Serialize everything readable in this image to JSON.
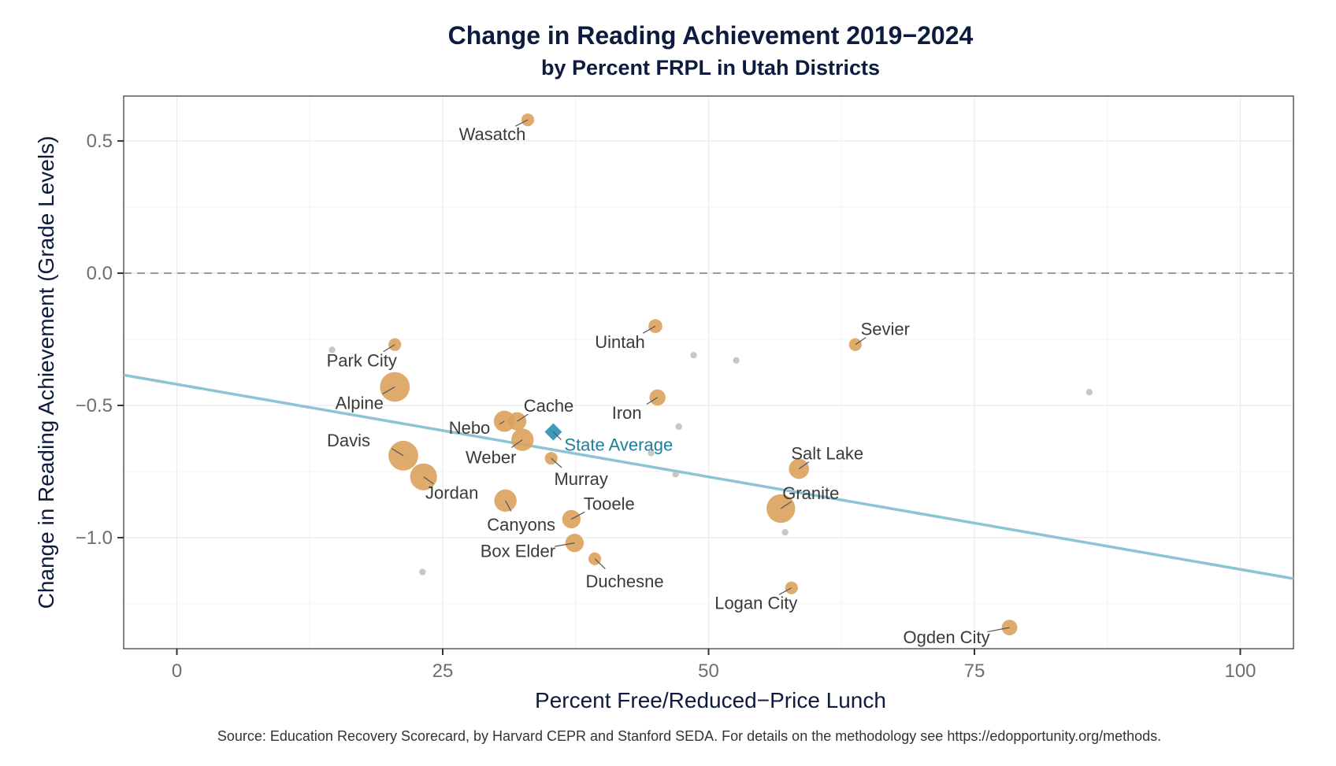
{
  "chart_data": {
    "type": "scatter",
    "title": "Change in Reading  Achievement 2019−2024",
    "subtitle": "by Percent FRPL in Utah Districts",
    "xlabel": "Percent Free/Reduced−Price Lunch",
    "ylabel": "Change in Reading Achievement (Grade Levels)",
    "xlim": [
      -5,
      105
    ],
    "ylim": [
      -1.42,
      0.67
    ],
    "x_ticks": [
      0,
      25,
      50,
      75,
      100
    ],
    "x_tick_labels": [
      "0",
      "25",
      "50",
      "75",
      "100"
    ],
    "y_ticks": [
      0.5,
      0.0,
      -0.5,
      -1.0
    ],
    "y_tick_labels": [
      "0.5",
      "0.0",
      "−0.5",
      "−1.0"
    ],
    "grid": true,
    "reference_line_y": 0.0,
    "trend_line": {
      "x": [
        -5,
        105
      ],
      "y": [
        -0.385,
        -1.155
      ]
    },
    "labeled_districts": [
      {
        "name": "Wasatch",
        "x": 33.0,
        "y": 0.58,
        "size": 1
      },
      {
        "name": "Park City",
        "x": 20.5,
        "y": -0.27,
        "size": 1
      },
      {
        "name": "Alpine",
        "x": 20.5,
        "y": -0.43,
        "size": 4
      },
      {
        "name": "Davis",
        "x": 21.3,
        "y": -0.69,
        "size": 4
      },
      {
        "name": "Jordan",
        "x": 23.2,
        "y": -0.77,
        "size": 3.5
      },
      {
        "name": "Nebo",
        "x": 30.8,
        "y": -0.56,
        "size": 2.5
      },
      {
        "name": "Cache",
        "x": 32.0,
        "y": -0.56,
        "size": 2
      },
      {
        "name": "Weber",
        "x": 32.5,
        "y": -0.63,
        "size": 2.7
      },
      {
        "name": "Canyons",
        "x": 30.9,
        "y": -0.86,
        "size": 2.7
      },
      {
        "name": "Murray",
        "x": 35.2,
        "y": -0.7,
        "size": 1
      },
      {
        "name": "Tooele",
        "x": 37.1,
        "y": -0.93,
        "size": 2
      },
      {
        "name": "Box Elder",
        "x": 37.4,
        "y": -1.02,
        "size": 2
      },
      {
        "name": "Duchesne",
        "x": 39.3,
        "y": -1.08,
        "size": 1
      },
      {
        "name": "Uintah",
        "x": 45.0,
        "y": -0.2,
        "size": 1.2
      },
      {
        "name": "Iron",
        "x": 45.2,
        "y": -0.47,
        "size": 1.6
      },
      {
        "name": "Salt Lake",
        "x": 58.5,
        "y": -0.74,
        "size": 2.3
      },
      {
        "name": "Granite",
        "x": 56.8,
        "y": -0.89,
        "size": 3.8
      },
      {
        "name": "Logan City",
        "x": 57.8,
        "y": -1.19,
        "size": 1
      },
      {
        "name": "Sevier",
        "x": 63.8,
        "y": -0.27,
        "size": 1
      },
      {
        "name": "Ogden City",
        "x": 78.3,
        "y": -1.34,
        "size": 1.5
      }
    ],
    "unlabeled_districts": [
      {
        "x": 14.6,
        "y": -0.29
      },
      {
        "x": 48.6,
        "y": -0.31
      },
      {
        "x": 52.6,
        "y": -0.33
      },
      {
        "x": 47.2,
        "y": -0.58
      },
      {
        "x": 44.6,
        "y": -0.68
      },
      {
        "x": 46.9,
        "y": -0.76
      },
      {
        "x": 57.2,
        "y": -0.98
      },
      {
        "x": 23.1,
        "y": -1.13
      },
      {
        "x": 85.8,
        "y": -0.45
      }
    ],
    "state_average": {
      "name": "State Average",
      "x": 35.4,
      "y": -0.6
    },
    "colors": {
      "district": "#dba25c",
      "unlabeled": "#bdbdbd",
      "state_average": "#3f9abb",
      "trend_line": "#8dc3d4",
      "reference_line": "#9a9a9a"
    }
  },
  "caption": "Source: Education Recovery Scorecard, by Harvard CEPR and Stanford SEDA. For details on the methodology see https://edopportunity.org/methods."
}
